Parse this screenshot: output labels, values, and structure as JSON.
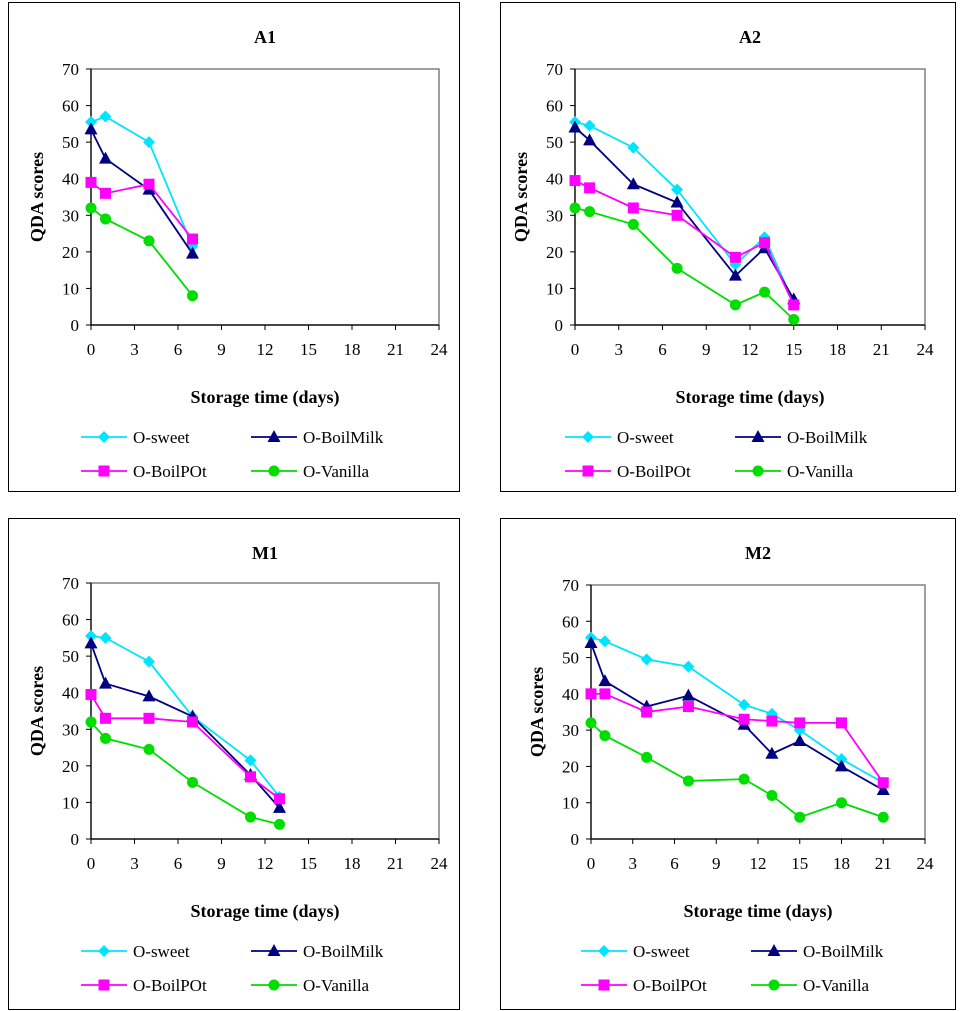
{
  "colors": {
    "O-sweet": "#00e5ff",
    "O-BoilMilk": "#000080",
    "O-BoilPOt": "#ff00ff",
    "O-Vanilla": "#00dd00",
    "plot_border": "#808080"
  },
  "chart_data": [
    {
      "type": "line",
      "title": "A1",
      "xlabel": "Storage time (days)",
      "ylabel": "QDA scores",
      "xlim": [
        0,
        24
      ],
      "ylim": [
        0,
        70
      ],
      "xticks": [
        "0",
        "3",
        "6",
        "9",
        "12",
        "15",
        "18",
        "21",
        "24"
      ],
      "yticks": [
        "0",
        "10",
        "20",
        "30",
        "40",
        "50",
        "60",
        "70"
      ],
      "grid": false,
      "legend_position": "bottom",
      "series": [
        {
          "name": "O-sweet",
          "marker": "diamond",
          "x": [
            0,
            1,
            4,
            7
          ],
          "y": [
            55.5,
            57,
            50,
            21.5
          ]
        },
        {
          "name": "O-BoilMilk",
          "marker": "triangle",
          "x": [
            0,
            1,
            4,
            7
          ],
          "y": [
            53.5,
            45.5,
            37,
            19.5
          ]
        },
        {
          "name": "O-BoilPOt",
          "marker": "square",
          "x": [
            0,
            1,
            4,
            7
          ],
          "y": [
            39,
            36,
            38.5,
            23.5
          ]
        },
        {
          "name": "O-Vanilla",
          "marker": "circle",
          "x": [
            0,
            1,
            4,
            7
          ],
          "y": [
            32,
            29,
            23,
            8
          ]
        }
      ]
    },
    {
      "type": "line",
      "title": "A2",
      "xlabel": "Storage time (days)",
      "ylabel": "QDA scores",
      "xlim": [
        0,
        24
      ],
      "ylim": [
        0,
        70
      ],
      "xticks": [
        "0",
        "3",
        "6",
        "9",
        "12",
        "15",
        "18",
        "21",
        "24"
      ],
      "yticks": [
        "0",
        "10",
        "20",
        "30",
        "40",
        "50",
        "60",
        "70"
      ],
      "grid": false,
      "legend_position": "bottom",
      "series": [
        {
          "name": "O-sweet",
          "marker": "diamond",
          "x": [
            0,
            1,
            4,
            7,
            11,
            13,
            15
          ],
          "y": [
            55.5,
            54.5,
            48.5,
            37,
            16.5,
            24,
            6
          ]
        },
        {
          "name": "O-BoilMilk",
          "marker": "triangle",
          "x": [
            0,
            1,
            4,
            7,
            11,
            13,
            15
          ],
          "y": [
            54,
            50.5,
            38.5,
            33.5,
            13.5,
            21,
            7
          ]
        },
        {
          "name": "O-BoilPOt",
          "marker": "square",
          "x": [
            0,
            1,
            4,
            7,
            11,
            13,
            15
          ],
          "y": [
            39.5,
            37.5,
            32,
            30,
            18.5,
            22.5,
            5.5
          ]
        },
        {
          "name": "O-Vanilla",
          "marker": "circle",
          "x": [
            0,
            1,
            4,
            7,
            11,
            13,
            15
          ],
          "y": [
            32,
            31,
            27.5,
            15.5,
            5.5,
            9,
            1.5
          ]
        }
      ]
    },
    {
      "type": "line",
      "title": "M1",
      "xlabel": "Storage time (days)",
      "ylabel": "QDA scores",
      "xlim": [
        0,
        24
      ],
      "ylim": [
        0,
        70
      ],
      "xticks": [
        "0",
        "3",
        "6",
        "9",
        "12",
        "15",
        "18",
        "21",
        "24"
      ],
      "yticks": [
        "0",
        "10",
        "20",
        "30",
        "40",
        "50",
        "60",
        "70"
      ],
      "grid": false,
      "legend_position": "bottom",
      "series": [
        {
          "name": "O-sweet",
          "marker": "diamond",
          "x": [
            0,
            1,
            4,
            7,
            11,
            13
          ],
          "y": [
            55.5,
            55,
            48.5,
            33.5,
            21.5,
            11.5
          ]
        },
        {
          "name": "O-BoilMilk",
          "marker": "triangle",
          "x": [
            0,
            1,
            4,
            7,
            11,
            13
          ],
          "y": [
            53.5,
            42.5,
            39,
            33.5,
            17.5,
            8.5
          ]
        },
        {
          "name": "O-BoilPOt",
          "marker": "square",
          "x": [
            0,
            1,
            4,
            7,
            11,
            13
          ],
          "y": [
            39.5,
            33,
            33,
            32,
            17,
            11
          ]
        },
        {
          "name": "O-Vanilla",
          "marker": "circle",
          "x": [
            0,
            1,
            4,
            7,
            11,
            13
          ],
          "y": [
            32,
            27.5,
            24.5,
            15.5,
            6,
            4
          ]
        }
      ]
    },
    {
      "type": "line",
      "title": "M2",
      "xlabel": "Storage time (days)",
      "ylabel": "QDA scores",
      "xlim": [
        0,
        24
      ],
      "ylim": [
        0,
        70
      ],
      "xticks": [
        "0",
        "3",
        "6",
        "9",
        "12",
        "15",
        "18",
        "21",
        "24"
      ],
      "yticks": [
        "0",
        "10",
        "20",
        "30",
        "40",
        "50",
        "60",
        "70"
      ],
      "grid": false,
      "legend_position": "bottom",
      "series": [
        {
          "name": "O-sweet",
          "marker": "diamond",
          "x": [
            0,
            1,
            4,
            7,
            11,
            13,
            15,
            18,
            21
          ],
          "y": [
            55.5,
            54.5,
            49.5,
            47.5,
            37,
            34.5,
            30,
            22,
            15.5
          ]
        },
        {
          "name": "O-BoilMilk",
          "marker": "triangle",
          "x": [
            0,
            1,
            4,
            7,
            11,
            13,
            15,
            18,
            21
          ],
          "y": [
            54,
            43.5,
            36.5,
            39.5,
            31.5,
            23.5,
            27,
            20,
            13.5
          ]
        },
        {
          "name": "O-BoilPOt",
          "marker": "square",
          "x": [
            0,
            1,
            4,
            7,
            11,
            13,
            15,
            18,
            21
          ],
          "y": [
            40,
            40,
            35,
            36.5,
            33,
            32.5,
            32,
            32,
            15.5
          ]
        },
        {
          "name": "O-Vanilla",
          "marker": "circle",
          "x": [
            0,
            1,
            4,
            7,
            11,
            13,
            15,
            18,
            21
          ],
          "y": [
            32,
            28.5,
            22.5,
            16,
            16.5,
            12,
            6,
            10,
            6
          ]
        }
      ]
    }
  ]
}
